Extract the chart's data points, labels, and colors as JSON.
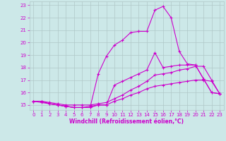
{
  "xlabel": "Windchill (Refroidissement éolien,°C)",
  "xlim": [
    -0.5,
    23.5
  ],
  "ylim": [
    14.6,
    23.3
  ],
  "yticks": [
    15,
    16,
    17,
    18,
    19,
    20,
    21,
    22,
    23
  ],
  "xticks": [
    0,
    1,
    2,
    3,
    4,
    5,
    6,
    7,
    8,
    9,
    10,
    11,
    12,
    13,
    14,
    15,
    16,
    17,
    18,
    19,
    20,
    21,
    22,
    23
  ],
  "bg_color": "#cce8e8",
  "grid_color": "#b0c8c8",
  "line_color": "#cc00cc",
  "line1_x": [
    0,
    1,
    2,
    3,
    4,
    5,
    6,
    7,
    8,
    9,
    10,
    11,
    12,
    13,
    14,
    15,
    16,
    17,
    18,
    19,
    20,
    21,
    22,
    23
  ],
  "line1_y": [
    15.3,
    15.3,
    15.1,
    15.0,
    14.9,
    14.8,
    14.8,
    14.8,
    15.0,
    15.0,
    16.6,
    16.9,
    17.2,
    17.5,
    17.8,
    19.2,
    18.0,
    18.1,
    18.2,
    18.2,
    18.2,
    17.1,
    16.0,
    15.9
  ],
  "line2_x": [
    0,
    1,
    2,
    3,
    4,
    5,
    6,
    7,
    8,
    9,
    10,
    11,
    12,
    13,
    14,
    15,
    16,
    17,
    18,
    19,
    20,
    21,
    22,
    23
  ],
  "line2_y": [
    15.3,
    15.2,
    15.1,
    15.0,
    14.9,
    14.8,
    14.8,
    14.9,
    15.0,
    15.0,
    15.3,
    15.5,
    15.8,
    16.0,
    16.3,
    16.5,
    16.6,
    16.7,
    16.8,
    16.9,
    17.0,
    17.0,
    16.9,
    15.9
  ],
  "line3_x": [
    0,
    1,
    2,
    3,
    4,
    5,
    6,
    7,
    8,
    9,
    10,
    11,
    12,
    13,
    14,
    15,
    16,
    17,
    18,
    19,
    20,
    21,
    22,
    23
  ],
  "line3_y": [
    15.3,
    15.3,
    15.1,
    15.0,
    14.9,
    14.8,
    14.8,
    14.8,
    17.5,
    18.9,
    19.8,
    20.2,
    20.8,
    20.9,
    20.9,
    22.6,
    22.9,
    22.0,
    19.3,
    18.3,
    18.2,
    17.1,
    16.0,
    15.9
  ],
  "line4_x": [
    0,
    1,
    2,
    3,
    4,
    5,
    6,
    7,
    8,
    9,
    10,
    11,
    12,
    13,
    14,
    15,
    16,
    17,
    18,
    19,
    20,
    21,
    22,
    23
  ],
  "line4_y": [
    15.3,
    15.3,
    15.2,
    15.1,
    15.0,
    15.0,
    15.0,
    15.0,
    15.1,
    15.2,
    15.5,
    15.8,
    16.2,
    16.5,
    16.9,
    17.4,
    17.5,
    17.6,
    17.8,
    17.9,
    18.1,
    18.1,
    17.0,
    15.9
  ]
}
